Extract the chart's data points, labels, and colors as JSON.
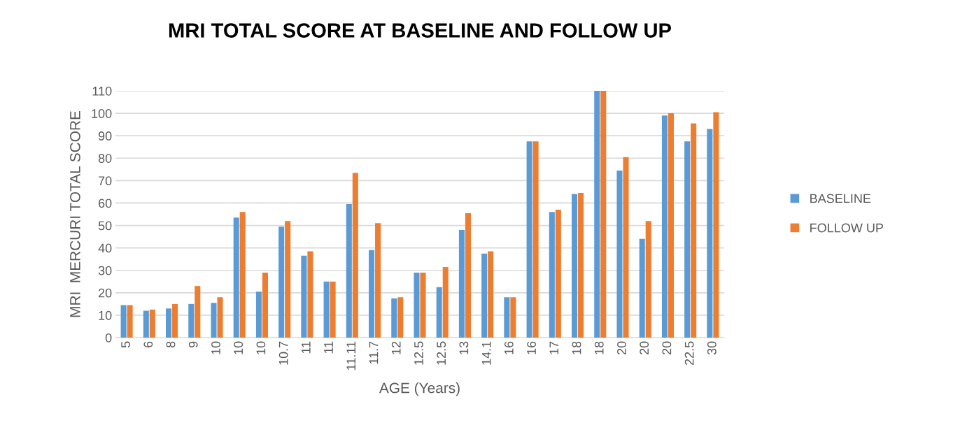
{
  "chart_data": {
    "type": "bar",
    "title": "MRI TOTAL SCORE AT BASELINE AND FOLLOW UP",
    "xlabel": "AGE (Years)",
    "ylabel": "MRI  MERCURI TOTAL SCORE",
    "categories": [
      "5",
      "6",
      "8",
      "9",
      "10",
      "10",
      "10",
      "10.7",
      "11",
      "11",
      "11.11",
      "11.7",
      "12",
      "12.5",
      "12.5",
      "13",
      "14.1",
      "16",
      "16",
      "17",
      "18",
      "18",
      "20",
      "20",
      "20",
      "22.5",
      "30"
    ],
    "series": [
      {
        "name": "BASELINE",
        "color": "#5b9bd5",
        "values": [
          14.5,
          12,
          13,
          15,
          15.5,
          53.5,
          20.5,
          49.5,
          36.5,
          25,
          59.5,
          39,
          17.5,
          29,
          22.5,
          48,
          37.5,
          18,
          87.5,
          56,
          64,
          110,
          74.5,
          44,
          99,
          87.5,
          93
        ]
      },
      {
        "name": "FOLLOW UP",
        "color": "#ed7d31",
        "values": [
          14.5,
          12.5,
          15,
          23,
          18,
          56,
          29,
          52,
          38.5,
          25,
          73.5,
          51,
          18,
          29,
          31.5,
          55.5,
          38.5,
          18,
          87.5,
          57,
          64.5,
          110,
          80.5,
          52,
          100,
          95.5,
          100.5
        ]
      }
    ],
    "ylim": [
      0,
      110
    ],
    "yticks": [
      0,
      10,
      20,
      30,
      40,
      50,
      60,
      70,
      80,
      90,
      100,
      110
    ],
    "grid": "y",
    "legend": "right"
  }
}
